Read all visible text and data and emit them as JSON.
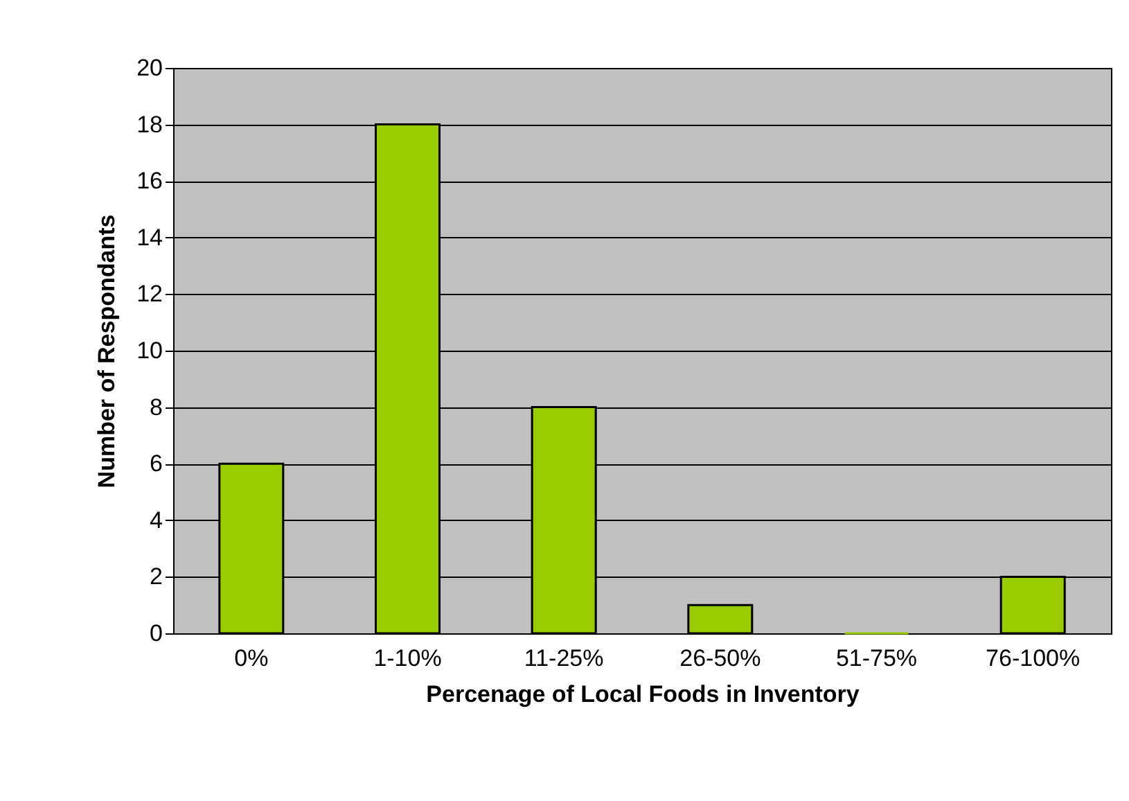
{
  "chart_data": {
    "type": "bar",
    "xlabel": "Percenage of Local Foods in Inventory",
    "ylabel": "Number of Respondants",
    "categories": [
      "0%",
      "1-10%",
      "11-25%",
      "26-50%",
      "51-75%",
      "76-100%"
    ],
    "values": [
      6,
      18,
      8,
      1,
      0,
      2
    ],
    "color": "#99cc00",
    "ylim": [
      0,
      20
    ],
    "yticks": [
      0,
      2,
      4,
      6,
      8,
      10,
      12,
      14,
      16,
      18,
      20
    ],
    "grid": "y"
  }
}
